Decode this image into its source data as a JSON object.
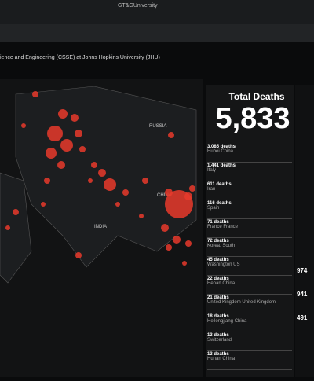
{
  "browser": {
    "tab": "GT&GUniversity",
    "title": "ience and Engineering (CSSE) at Johns Hopkins University (JHU)"
  },
  "map": {
    "labels": [
      "RUSSIA",
      "CHINA",
      "INDIA"
    ]
  },
  "deaths_panel": {
    "title": "Total Deaths",
    "total": "5,833",
    "items": [
      {
        "count": "3,085 deaths",
        "place": "Hubei China"
      },
      {
        "count": "1,441 deaths",
        "place": "Italy"
      },
      {
        "count": "611 deaths",
        "place": "Iran"
      },
      {
        "count": "116 deaths",
        "place": "Spain"
      },
      {
        "count": "71 deaths",
        "place": "France France"
      },
      {
        "count": "72 deaths",
        "place": "Korea, South"
      },
      {
        "count": "45 deaths",
        "place": "Washington US"
      },
      {
        "count": "22 deaths",
        "place": "Henan China"
      },
      {
        "count": "21 deaths",
        "place": "United Kingdom United Kingdom"
      },
      {
        "count": "18 deaths",
        "place": "Heilongjiang China"
      },
      {
        "count": "13 deaths",
        "place": "Switzerland"
      },
      {
        "count": "13 deaths",
        "place": "Hunan China"
      }
    ]
  },
  "side_panel": {
    "values": [
      "974",
      "941",
      "491"
    ]
  }
}
